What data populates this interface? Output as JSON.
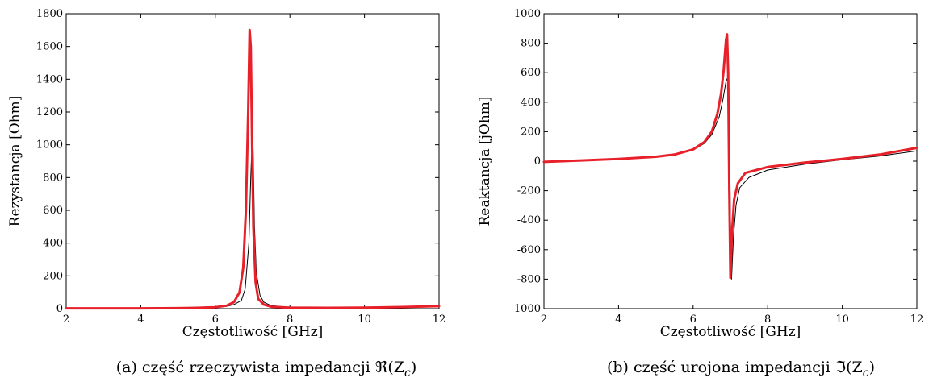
{
  "chart_data": [
    {
      "type": "line",
      "xlabel": "Częstotliwość [GHz]",
      "ylabel": "Rezystancja [Ohm]",
      "xlim": [
        2,
        12
      ],
      "ylim": [
        0,
        1800
      ],
      "xticks": [
        "2",
        "4",
        "6",
        "8",
        "10",
        "12"
      ],
      "yticks": [
        "0",
        "200",
        "400",
        "600",
        "800",
        "1000",
        "1200",
        "1400",
        "1600",
        "1800"
      ],
      "caption": "(a) część rzeczywista impedancji ℜ(Z",
      "caption_sub": "c",
      "caption_end": ")",
      "series": [
        {
          "color": "#000000",
          "x": [
            2,
            3,
            4,
            5,
            5.5,
            6,
            6.3,
            6.5,
            6.7,
            6.8,
            6.9,
            6.95,
            7.0,
            7.02,
            7.05,
            7.1,
            7.2,
            7.3,
            7.5,
            8,
            9,
            10,
            11,
            12
          ],
          "y": [
            2,
            2,
            2,
            3,
            4,
            8,
            14,
            25,
            50,
            120,
            400,
            800,
            1110,
            900,
            500,
            220,
            80,
            40,
            18,
            8,
            5,
            5,
            8,
            12
          ]
        },
        {
          "color": "#e8202a",
          "x": [
            2,
            3,
            4,
            5,
            5.5,
            6,
            6.3,
            6.5,
            6.65,
            6.75,
            6.82,
            6.88,
            6.92,
            6.95,
            6.98,
            7.02,
            7.08,
            7.15,
            7.3,
            7.5,
            8,
            9,
            10,
            11,
            12
          ],
          "y": [
            2,
            2,
            2,
            3,
            5,
            9,
            18,
            40,
            100,
            250,
            600,
            1200,
            1700,
            1600,
            1100,
            500,
            160,
            60,
            25,
            12,
            6,
            5,
            6,
            10,
            15
          ]
        }
      ]
    },
    {
      "type": "line",
      "xlabel": "Częstotliwość [GHz]",
      "ylabel": "Reaktancja [jOhm]",
      "xlim": [
        2,
        12
      ],
      "ylim": [
        -1000,
        1000
      ],
      "xticks": [
        "2",
        "4",
        "6",
        "8",
        "10",
        "12"
      ],
      "yticks": [
        "-1000",
        "-800",
        "-600",
        "-400",
        "-200",
        "0",
        "200",
        "400",
        "600",
        "800",
        "1000"
      ],
      "caption": "(b) część urojona impedancji ℑ(Z",
      "caption_sub": "c",
      "caption_end": ")",
      "series": [
        {
          "color": "#000000",
          "x": [
            2,
            3,
            4,
            5,
            5.5,
            6,
            6.3,
            6.5,
            6.7,
            6.8,
            6.88,
            6.93,
            6.97,
            7.0,
            7.03,
            7.08,
            7.15,
            7.25,
            7.5,
            8,
            9,
            10,
            11,
            12
          ],
          "y": [
            -5,
            5,
            15,
            30,
            45,
            75,
            120,
            180,
            300,
            420,
            540,
            570,
            300,
            -400,
            -800,
            -520,
            -300,
            -180,
            -110,
            -60,
            -20,
            10,
            35,
            70
          ]
        },
        {
          "color": "#e8202a",
          "x": [
            2,
            3,
            4,
            5,
            5.5,
            6,
            6.3,
            6.5,
            6.65,
            6.75,
            6.82,
            6.88,
            6.91,
            6.94,
            6.97,
            7.0,
            7.04,
            7.1,
            7.2,
            7.4,
            8,
            9,
            10,
            11,
            12
          ],
          "y": [
            -5,
            5,
            15,
            30,
            45,
            80,
            130,
            200,
            320,
            460,
            620,
            820,
            860,
            600,
            -200,
            -790,
            -500,
            -260,
            -150,
            -80,
            -40,
            -10,
            15,
            45,
            90
          ]
        }
      ]
    }
  ]
}
